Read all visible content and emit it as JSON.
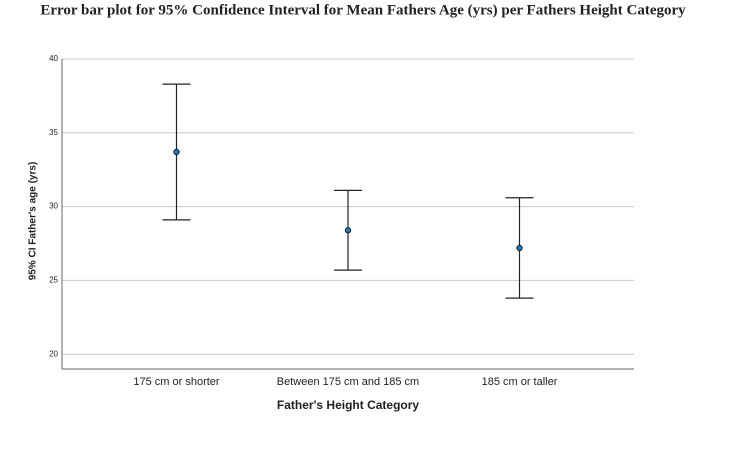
{
  "chart_data": {
    "type": "errorbar",
    "title": "Error bar plot for 95% Confidence Interval for Mean Fathers Age (yrs) per Fathers Height Category",
    "x_label": "Father's Height Category",
    "y_label": "95% CI Father's age (yrs)",
    "categories": [
      "175 cm or shorter",
      "Between 175 cm and 185 cm",
      "185 cm or taller"
    ],
    "values": [
      33.7,
      28.4,
      27.2
    ],
    "errors": [
      4.6,
      2.7,
      3.4
    ],
    "color": "#1f77b4",
    "ylim": [
      19,
      40
    ],
    "yticks": [
      20,
      25,
      30,
      35,
      40
    ],
    "grid": true
  }
}
